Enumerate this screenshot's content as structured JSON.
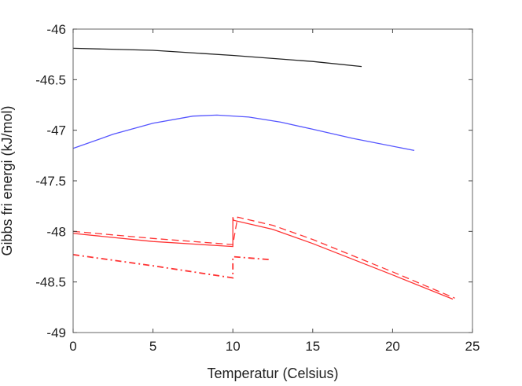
{
  "chart_data": {
    "type": "line",
    "title": "",
    "xlabel": "Temperatur (Celsius)",
    "ylabel": "Gibbs fri energi (kJ/mol)",
    "xlim": [
      0,
      25
    ],
    "ylim": [
      -49,
      -46
    ],
    "xticks": [
      "0",
      "5",
      "10",
      "15",
      "20",
      "25"
    ],
    "yticks": [
      "-46",
      "-46.5",
      "-47",
      "-47.5",
      "-48",
      "-48.5",
      "-49"
    ],
    "grid": false,
    "series": [
      {
        "name": "black",
        "color": "#222222",
        "dash": "solid",
        "x": [
          0,
          5,
          10,
          15,
          18.06
        ],
        "y": [
          -46.19,
          -46.21,
          -46.26,
          -46.32,
          -46.37
        ]
      },
      {
        "name": "blue",
        "color": "#5555ff",
        "dash": "solid",
        "x": [
          0,
          2.5,
          5,
          7.5,
          9,
          11,
          13,
          15,
          17.5,
          21.36
        ],
        "y": [
          -47.18,
          -47.04,
          -46.93,
          -46.86,
          -46.85,
          -46.87,
          -46.92,
          -46.99,
          -47.08,
          -47.2
        ]
      },
      {
        "name": "red-solid",
        "color": "#ff3333",
        "dash": "solid",
        "x": [
          0,
          5,
          10,
          10,
          10.05,
          12.5,
          15,
          20,
          23.77
        ],
        "y": [
          -48.02,
          -48.1,
          -48.15,
          -47.86,
          -47.89,
          -47.98,
          -48.12,
          -48.43,
          -48.67
        ]
      },
      {
        "name": "red-dashed",
        "color": "#ff3333",
        "dash": "dashed",
        "x": [
          0,
          5,
          10,
          10.3,
          12.5,
          15,
          20,
          23.9
        ],
        "y": [
          -48.0,
          -48.07,
          -48.13,
          -47.86,
          -47.94,
          -48.08,
          -48.4,
          -48.66
        ]
      },
      {
        "name": "red-dashdot",
        "color": "#ff3333",
        "dash": "dashdot",
        "x": [
          0,
          5,
          10,
          10,
          12.4
        ],
        "y": [
          -48.23,
          -48.34,
          -48.46,
          -48.25,
          -48.28
        ]
      }
    ]
  }
}
